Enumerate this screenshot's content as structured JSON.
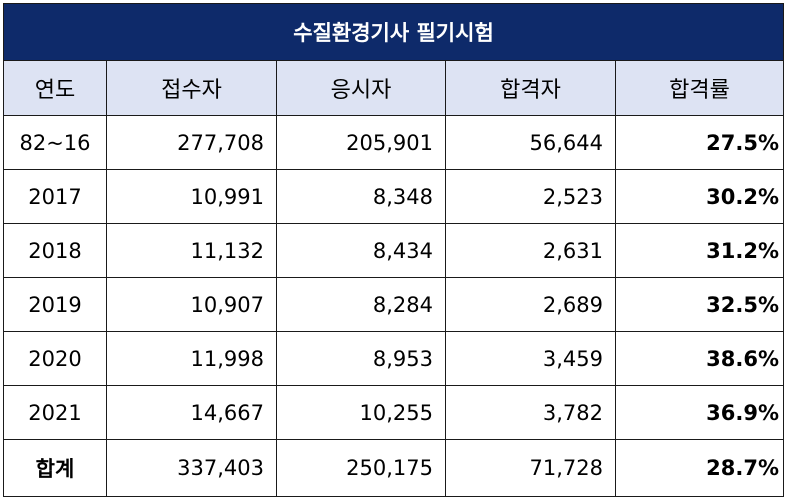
{
  "title": "수질환경기사 필기시험",
  "headers": {
    "year": "연도",
    "applicants": "접수자",
    "examinees": "응시자",
    "passers": "합격자",
    "pass_rate": "합격률"
  },
  "rows": [
    {
      "year": "82~16",
      "applicants": "277,708",
      "examinees": "205,901",
      "passers": "56,644",
      "pass_rate": "27.5%"
    },
    {
      "year": "2017",
      "applicants": "10,991",
      "examinees": "8,348",
      "passers": "2,523",
      "pass_rate": "30.2%"
    },
    {
      "year": "2018",
      "applicants": "11,132",
      "examinees": "8,434",
      "passers": "2,631",
      "pass_rate": "31.2%"
    },
    {
      "year": "2019",
      "applicants": "10,907",
      "examinees": "8,284",
      "passers": "2,689",
      "pass_rate": "32.5%"
    },
    {
      "year": "2020",
      "applicants": "11,998",
      "examinees": "8,953",
      "passers": "3,459",
      "pass_rate": "38.6%"
    },
    {
      "year": "2021",
      "applicants": "14,667",
      "examinees": "10,255",
      "passers": "3,782",
      "pass_rate": "36.9%"
    }
  ],
  "total": {
    "label": "합계",
    "applicants": "337,403",
    "examinees": "250,175",
    "passers": "71,728",
    "pass_rate": "28.7%"
  },
  "colors": {
    "title_bg": "#0e2a6a",
    "header_bg": "#dde3f3"
  }
}
